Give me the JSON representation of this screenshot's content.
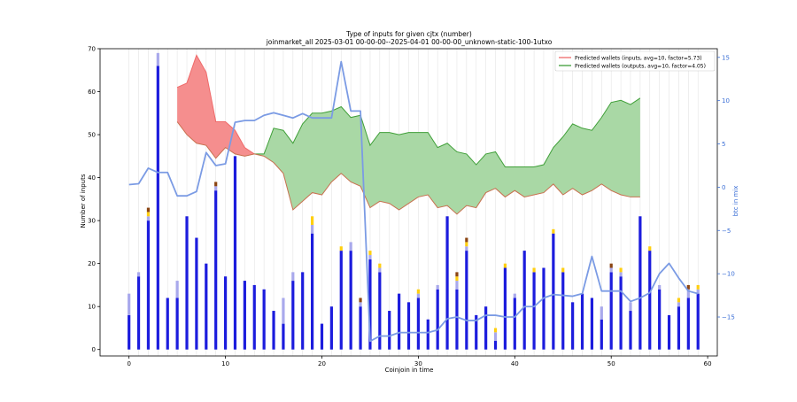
{
  "chart_data": {
    "type": "bar",
    "title_line1": "Type of inputs for given cjtx (number)",
    "title_line2": "joinmarket_all 2025-03-01 00-00-00--2025-04-01 00-00-00_unknown-static-100-1utxo",
    "xlabel": "Coinjoin in time",
    "ylabel": "Number of inputs",
    "y2label": "btc in mix",
    "xlim": [
      -3,
      61
    ],
    "ylim": [
      -1.5,
      70
    ],
    "y2lim": [
      -19.5,
      16
    ],
    "xticks": [
      0,
      10,
      20,
      30,
      40,
      50,
      60
    ],
    "yticks": [
      0,
      10,
      20,
      30,
      40,
      50,
      60,
      70
    ],
    "y2ticks": [
      -15,
      -10,
      -5,
      0,
      5,
      10,
      15
    ],
    "grid": "vertical",
    "legend_position": "top-right",
    "legend": [
      "Predicted wallets (inputs, avg=10, factor=5.73)",
      "Predicted wallets (outputs, avg=10, factor=4.05)"
    ],
    "colors": {
      "main_bar": "#1c1cdd",
      "light_bar": "#a9a9ec",
      "gold": "#ffcf10",
      "brown": "#8b4513",
      "red_fill": "#f58e8e",
      "red_line": "#ef6a6a",
      "green_fill": "#a9d8a5",
      "green_line": "#3f9f38",
      "lower_line": "#c8704f",
      "btc_line": "#7b9be4",
      "right_axis": "#3b6fd6"
    },
    "bars": [
      {
        "x": 0,
        "main": 8,
        "light": 5,
        "gold": 0,
        "brown": 0
      },
      {
        "x": 1,
        "main": 17,
        "light": 1,
        "gold": 0,
        "brown": 0
      },
      {
        "x": 2,
        "main": 30,
        "light": 1,
        "gold": 1,
        "brown": 1
      },
      {
        "x": 3,
        "main": 66,
        "light": 3,
        "gold": 0,
        "brown": 0
      },
      {
        "x": 4,
        "main": 12,
        "light": 0,
        "gold": 0,
        "brown": 0
      },
      {
        "x": 5,
        "main": 12,
        "light": 4,
        "gold": 0,
        "brown": 0
      },
      {
        "x": 6,
        "main": 31,
        "light": 0,
        "gold": 0,
        "brown": 0
      },
      {
        "x": 7,
        "main": 26,
        "light": 0,
        "gold": 0,
        "brown": 0
      },
      {
        "x": 8,
        "main": 20,
        "light": 0,
        "gold": 0,
        "brown": 0
      },
      {
        "x": 9,
        "main": 37,
        "light": 1,
        "gold": 0,
        "brown": 1
      },
      {
        "x": 10,
        "main": 17,
        "light": 0,
        "gold": 0,
        "brown": 0
      },
      {
        "x": 11,
        "main": 45,
        "light": 0,
        "gold": 0,
        "brown": 0
      },
      {
        "x": 12,
        "main": 16,
        "light": 0,
        "gold": 0,
        "brown": 0
      },
      {
        "x": 13,
        "main": 15,
        "light": 0,
        "gold": 0,
        "brown": 0
      },
      {
        "x": 14,
        "main": 14,
        "light": 0,
        "gold": 0,
        "brown": 0
      },
      {
        "x": 15,
        "main": 9,
        "light": 0,
        "gold": 0,
        "brown": 0
      },
      {
        "x": 16,
        "main": 6,
        "light": 6,
        "gold": 0,
        "brown": 0
      },
      {
        "x": 17,
        "main": 16,
        "light": 2,
        "gold": 0,
        "brown": 0
      },
      {
        "x": 18,
        "main": 18,
        "light": 0,
        "gold": 0,
        "brown": 0
      },
      {
        "x": 19,
        "main": 27,
        "light": 2,
        "gold": 2,
        "brown": 0
      },
      {
        "x": 20,
        "main": 6,
        "light": 0,
        "gold": 0,
        "brown": 0
      },
      {
        "x": 21,
        "main": 10,
        "light": 0,
        "gold": 0,
        "brown": 0
      },
      {
        "x": 22,
        "main": 23,
        "light": 0,
        "gold": 1,
        "brown": 0
      },
      {
        "x": 23,
        "main": 23,
        "light": 2,
        "gold": 0,
        "brown": 0
      },
      {
        "x": 24,
        "main": 10,
        "light": 1,
        "gold": 0,
        "brown": 1
      },
      {
        "x": 25,
        "main": 21,
        "light": 1,
        "gold": 1,
        "brown": 0
      },
      {
        "x": 26,
        "main": 18,
        "light": 1,
        "gold": 1,
        "brown": 0
      },
      {
        "x": 27,
        "main": 9,
        "light": 0,
        "gold": 0,
        "brown": 0
      },
      {
        "x": 28,
        "main": 13,
        "light": 0,
        "gold": 0,
        "brown": 0
      },
      {
        "x": 29,
        "main": 11,
        "light": 0,
        "gold": 0,
        "brown": 0
      },
      {
        "x": 30,
        "main": 12,
        "light": 1,
        "gold": 1,
        "brown": 0
      },
      {
        "x": 31,
        "main": 7,
        "light": 0,
        "gold": 0,
        "brown": 0
      },
      {
        "x": 32,
        "main": 14,
        "light": 1,
        "gold": 0,
        "brown": 0
      },
      {
        "x": 33,
        "main": 31,
        "light": 0,
        "gold": 0,
        "brown": 0
      },
      {
        "x": 34,
        "main": 14,
        "light": 2,
        "gold": 1,
        "brown": 1
      },
      {
        "x": 35,
        "main": 23,
        "light": 1,
        "gold": 1,
        "brown": 1
      },
      {
        "x": 36,
        "main": 8,
        "light": 0,
        "gold": 0,
        "brown": 0
      },
      {
        "x": 37,
        "main": 10,
        "light": 0,
        "gold": 0,
        "brown": 0
      },
      {
        "x": 38,
        "main": 2,
        "light": 2,
        "gold": 1,
        "brown": 0
      },
      {
        "x": 39,
        "main": 19,
        "light": 0,
        "gold": 1,
        "brown": 0
      },
      {
        "x": 40,
        "main": 12,
        "light": 1,
        "gold": 0,
        "brown": 0
      },
      {
        "x": 41,
        "main": 23,
        "light": 0,
        "gold": 0,
        "brown": 0
      },
      {
        "x": 42,
        "main": 18,
        "light": 0,
        "gold": 1,
        "brown": 0
      },
      {
        "x": 43,
        "main": 19,
        "light": 0,
        "gold": 0,
        "brown": 0
      },
      {
        "x": 44,
        "main": 27,
        "light": 0,
        "gold": 1,
        "brown": 0
      },
      {
        "x": 45,
        "main": 18,
        "light": 0,
        "gold": 1,
        "brown": 0
      },
      {
        "x": 46,
        "main": 11,
        "light": 0,
        "gold": 0,
        "brown": 0
      },
      {
        "x": 47,
        "main": 13,
        "light": 0,
        "gold": 0,
        "brown": 0
      },
      {
        "x": 48,
        "main": 12,
        "light": 0,
        "gold": 0,
        "brown": 0
      },
      {
        "x": 49,
        "main": 7,
        "light": 3,
        "gold": 0,
        "brown": 0
      },
      {
        "x": 50,
        "main": 18,
        "light": 1,
        "gold": 0,
        "brown": 1
      },
      {
        "x": 51,
        "main": 17,
        "light": 1,
        "gold": 1,
        "brown": 0
      },
      {
        "x": 52,
        "main": 9,
        "light": 2,
        "gold": 0,
        "brown": 0
      },
      {
        "x": 53,
        "main": 31,
        "light": 0,
        "gold": 0,
        "brown": 0
      },
      {
        "x": 54,
        "main": 23,
        "light": 0,
        "gold": 1,
        "brown": 0
      },
      {
        "x": 55,
        "main": 14,
        "light": 1,
        "gold": 0,
        "brown": 0
      },
      {
        "x": 56,
        "main": 8,
        "light": 0,
        "gold": 0,
        "brown": 0
      },
      {
        "x": 57,
        "main": 10,
        "light": 1,
        "gold": 1,
        "brown": 0
      },
      {
        "x": 58,
        "main": 12,
        "light": 2,
        "gold": 0,
        "brown": 1
      },
      {
        "x": 59,
        "main": 13,
        "light": 1,
        "gold": 1,
        "brown": 0
      }
    ],
    "inputs_wallets": {
      "x": [
        5,
        6,
        7,
        8,
        9,
        10,
        11,
        12,
        13
      ],
      "upper": [
        61,
        62,
        68.5,
        64.5,
        53,
        53,
        51,
        47,
        45.5
      ],
      "lower": [
        53,
        50,
        48,
        47.5,
        44.5,
        47,
        45.5,
        45,
        45.5
      ]
    },
    "outputs_wallets": {
      "x": [
        13,
        14,
        15,
        16,
        17,
        18,
        19,
        20,
        21,
        22,
        23,
        24,
        25,
        26,
        27,
        28,
        29,
        30,
        31,
        32,
        33,
        34,
        35,
        36,
        37,
        38,
        39,
        40,
        41,
        42,
        43,
        44,
        45,
        46,
        47,
        48,
        49,
        50,
        51,
        52,
        53
      ],
      "upper": [
        45.5,
        45.5,
        51.5,
        51,
        48,
        52.5,
        55,
        55,
        55.5,
        56.5,
        54,
        54.5,
        47.5,
        50.5,
        50.5,
        50,
        50.5,
        50.5,
        50.5,
        47,
        48,
        46,
        45.5,
        43,
        45.5,
        46,
        42.5,
        42.5,
        42.5,
        42.5,
        43,
        47,
        49.5,
        52.5,
        51.5,
        51,
        54,
        57.5,
        58,
        57,
        58.5
      ],
      "lower": [
        45.5,
        45,
        43.5,
        41,
        32.5,
        34.5,
        36.5,
        36,
        39,
        41,
        39,
        38,
        33,
        34.5,
        34,
        32.5,
        34,
        35.5,
        36,
        33,
        33.5,
        31.5,
        33.5,
        33,
        36.5,
        37.5,
        35.5,
        37,
        35.5,
        36,
        36.5,
        38.5,
        36,
        37.5,
        36,
        37,
        38.5,
        37,
        36,
        35.5,
        35.5
      ]
    },
    "btc_in_mix": {
      "x": [
        0,
        1,
        2,
        3,
        4,
        5,
        6,
        7,
        8,
        9,
        10,
        11,
        12,
        13,
        14,
        15,
        16,
        17,
        18,
        19,
        20,
        21,
        22,
        23,
        24,
        25,
        26,
        27,
        28,
        29,
        30,
        31,
        32,
        33,
        34,
        35,
        36,
        37,
        38,
        39,
        40,
        41,
        42,
        43,
        44,
        45,
        46,
        47,
        48,
        49,
        50,
        51,
        52,
        53,
        54,
        55,
        56,
        57,
        58,
        59
      ],
      "values": [
        0.3,
        0.4,
        2.2,
        1.7,
        1.7,
        -1.0,
        -1.0,
        -0.5,
        4.0,
        2.5,
        2.7,
        7.5,
        7.7,
        7.7,
        8.3,
        8.6,
        8.3,
        8.0,
        8.5,
        8.0,
        8.0,
        8.0,
        14.5,
        8.8,
        8.8,
        -17.8,
        -17.2,
        -17.2,
        -16.8,
        -16.8,
        -16.8,
        -16.8,
        -16.5,
        -15.2,
        -15.0,
        -15.4,
        -15.4,
        -14.8,
        -14.8,
        -15.0,
        -15.0,
        -13.8,
        -13.8,
        -12.8,
        -12.4,
        -12.5,
        -12.6,
        -12.3,
        -8.0,
        -12.0,
        -12.0,
        -12.0,
        -13.2,
        -12.8,
        -12.2,
        -10.0,
        -8.8,
        -10.5,
        -12.0,
        -12.3
      ]
    }
  }
}
